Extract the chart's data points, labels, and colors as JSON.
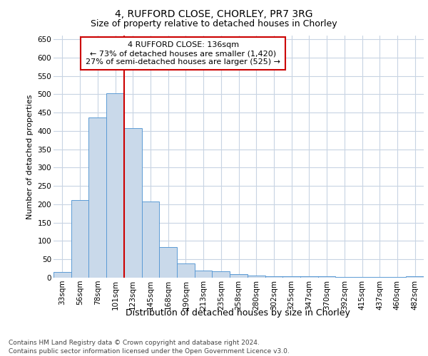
{
  "title_line1": "4, RUFFORD CLOSE, CHORLEY, PR7 3RG",
  "title_line2": "Size of property relative to detached houses in Chorley",
  "xlabel": "Distribution of detached houses by size in Chorley",
  "ylabel": "Number of detached properties",
  "categories": [
    "33sqm",
    "56sqm",
    "78sqm",
    "101sqm",
    "123sqm",
    "145sqm",
    "168sqm",
    "190sqm",
    "213sqm",
    "235sqm",
    "258sqm",
    "280sqm",
    "302sqm",
    "325sqm",
    "347sqm",
    "370sqm",
    "392sqm",
    "415sqm",
    "437sqm",
    "460sqm",
    "482sqm"
  ],
  "values": [
    15,
    212,
    436,
    502,
    408,
    207,
    84,
    38,
    20,
    18,
    10,
    6,
    4,
    4,
    4,
    4,
    1,
    1,
    1,
    1,
    4
  ],
  "bar_color": "#c9d9ea",
  "bar_edge_color": "#5b9bd5",
  "grid_color": "#c8d4e3",
  "annotation_text": "4 RUFFORD CLOSE: 136sqm\n← 73% of detached houses are smaller (1,420)\n27% of semi-detached houses are larger (525) →",
  "annotation_box_color": "#ffffff",
  "annotation_box_edge_color": "#cc0000",
  "vline_color": "#cc0000",
  "vline_x_index": 4,
  "ylim_max": 660,
  "yticks": [
    0,
    50,
    100,
    150,
    200,
    250,
    300,
    350,
    400,
    450,
    500,
    550,
    600,
    650
  ],
  "footer_line1": "Contains HM Land Registry data © Crown copyright and database right 2024.",
  "footer_line2": "Contains public sector information licensed under the Open Government Licence v3.0.",
  "bg_color": "#ffffff",
  "title1_fontsize": 10,
  "title2_fontsize": 9,
  "xlabel_fontsize": 9,
  "ylabel_fontsize": 8,
  "tick_fontsize": 7.5,
  "ann_fontsize": 8,
  "footer_fontsize": 6.5
}
